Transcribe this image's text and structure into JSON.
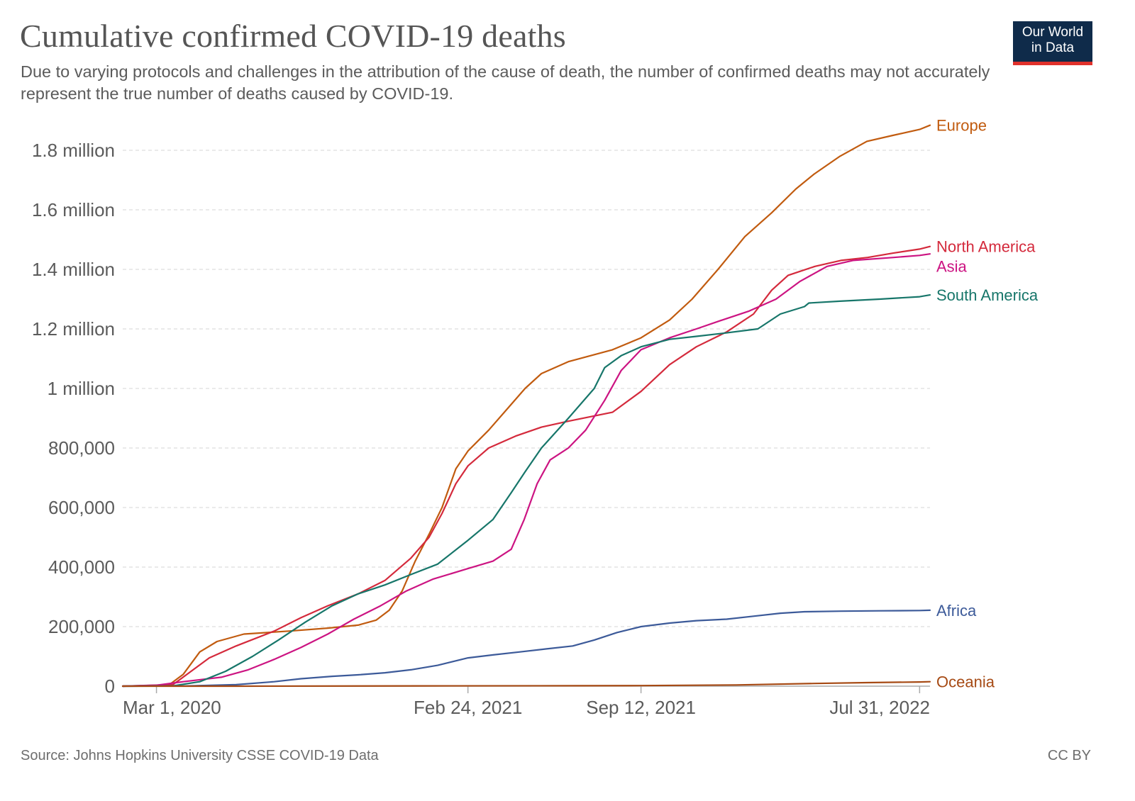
{
  "header": {
    "title": "Cumulative confirmed COVID-19 deaths",
    "subtitle": "Due to varying protocols and challenges in the attribution of the cause of death, the number of confirmed deaths may not accurately represent the true number of deaths caused by COVID-19.",
    "logo_line1": "Our World",
    "logo_line2": "in Data"
  },
  "footer": {
    "source": "Source: Johns Hopkins University CSSE COVID-19 Data",
    "license": "CC BY"
  },
  "colors": {
    "logo_bg": "#0f2b4a",
    "logo_accent": "#e0312b",
    "grid": "#dddddd",
    "axis": "#aaaaaa"
  },
  "chart_data": {
    "type": "line",
    "title": "Cumulative confirmed COVID-19 deaths",
    "xlabel": "",
    "ylabel": "",
    "x_range": [
      "2020-01-22",
      "2022-08-12"
    ],
    "ylim": [
      0,
      1900000
    ],
    "x_ticks": [
      {
        "date": "2020-03-01",
        "label": "Mar 1, 2020"
      },
      {
        "date": "2021-02-24",
        "label": "Feb 24, 2021"
      },
      {
        "date": "2021-09-12",
        "label": "Sep 12, 2021"
      },
      {
        "date": "2022-07-31",
        "label": "Jul 31, 2022"
      }
    ],
    "y_ticks": [
      {
        "value": 0,
        "label": "0"
      },
      {
        "value": 200000,
        "label": "200,000"
      },
      {
        "value": 400000,
        "label": "400,000"
      },
      {
        "value": 600000,
        "label": "600,000"
      },
      {
        "value": 800000,
        "label": "800,000"
      },
      {
        "value": 1000000,
        "label": "1 million"
      },
      {
        "value": 1200000,
        "label": "1.2 million"
      },
      {
        "value": 1400000,
        "label": "1.4 million"
      },
      {
        "value": 1600000,
        "label": "1.6 million"
      },
      {
        "value": 1800000,
        "label": "1.8 million"
      }
    ],
    "grid": "horizontal dashed",
    "legend": "inline labels at right end of lines",
    "series": [
      {
        "name": "Europe",
        "color": "#c15b0f",
        "points": [
          [
            "2020-01-22",
            0
          ],
          [
            "2020-03-15",
            3000
          ],
          [
            "2020-04-01",
            40000
          ],
          [
            "2020-04-20",
            115000
          ],
          [
            "2020-05-10",
            150000
          ],
          [
            "2020-06-10",
            175000
          ],
          [
            "2020-08-01",
            185000
          ],
          [
            "2020-09-15",
            195000
          ],
          [
            "2020-10-20",
            205000
          ],
          [
            "2020-11-10",
            222000
          ],
          [
            "2020-11-25",
            255000
          ],
          [
            "2020-12-10",
            320000
          ],
          [
            "2020-12-25",
            420000
          ],
          [
            "2021-01-10",
            510000
          ],
          [
            "2021-01-25",
            600000
          ],
          [
            "2021-02-10",
            730000
          ],
          [
            "2021-02-24",
            790000
          ],
          [
            "2021-03-20",
            860000
          ],
          [
            "2021-04-10",
            930000
          ],
          [
            "2021-05-01",
            1000000
          ],
          [
            "2021-05-20",
            1050000
          ],
          [
            "2021-06-20",
            1090000
          ],
          [
            "2021-08-10",
            1130000
          ],
          [
            "2021-09-12",
            1170000
          ],
          [
            "2021-10-15",
            1230000
          ],
          [
            "2021-11-10",
            1300000
          ],
          [
            "2021-12-10",
            1400000
          ],
          [
            "2022-01-10",
            1510000
          ],
          [
            "2022-02-10",
            1590000
          ],
          [
            "2022-03-10",
            1670000
          ],
          [
            "2022-03-31",
            1720000
          ],
          [
            "2022-04-30",
            1780000
          ],
          [
            "2022-05-31",
            1830000
          ],
          [
            "2022-06-30",
            1850000
          ],
          [
            "2022-07-31",
            1870000
          ],
          [
            "2022-08-12",
            1884000
          ]
        ]
      },
      {
        "name": "North America",
        "color": "#d42a3c",
        "points": [
          [
            "2020-01-22",
            0
          ],
          [
            "2020-03-20",
            5000
          ],
          [
            "2020-04-10",
            50000
          ],
          [
            "2020-05-01",
            95000
          ],
          [
            "2020-06-01",
            135000
          ],
          [
            "2020-07-15",
            185000
          ],
          [
            "2020-08-15",
            230000
          ],
          [
            "2020-09-15",
            270000
          ],
          [
            "2020-10-20",
            310000
          ],
          [
            "2020-11-20",
            355000
          ],
          [
            "2020-12-20",
            430000
          ],
          [
            "2021-01-10",
            500000
          ],
          [
            "2021-01-25",
            580000
          ],
          [
            "2021-02-10",
            680000
          ],
          [
            "2021-02-24",
            740000
          ],
          [
            "2021-03-20",
            800000
          ],
          [
            "2021-04-20",
            840000
          ],
          [
            "2021-05-20",
            870000
          ],
          [
            "2021-06-20",
            890000
          ],
          [
            "2021-08-10",
            920000
          ],
          [
            "2021-09-12",
            990000
          ],
          [
            "2021-10-15",
            1080000
          ],
          [
            "2021-11-15",
            1140000
          ],
          [
            "2021-12-20",
            1190000
          ],
          [
            "2022-01-20",
            1250000
          ],
          [
            "2022-02-10",
            1330000
          ],
          [
            "2022-03-01",
            1380000
          ],
          [
            "2022-04-01",
            1410000
          ],
          [
            "2022-05-01",
            1430000
          ],
          [
            "2022-06-01",
            1440000
          ],
          [
            "2022-07-01",
            1455000
          ],
          [
            "2022-07-31",
            1468000
          ],
          [
            "2022-08-12",
            1477000
          ]
        ]
      },
      {
        "name": "Asia",
        "color": "#cc1482",
        "points": [
          [
            "2020-01-22",
            0
          ],
          [
            "2020-03-01",
            3000
          ],
          [
            "2020-04-01",
            15000
          ],
          [
            "2020-05-15",
            30000
          ],
          [
            "2020-06-15",
            55000
          ],
          [
            "2020-07-15",
            90000
          ],
          [
            "2020-08-15",
            130000
          ],
          [
            "2020-09-15",
            175000
          ],
          [
            "2020-10-15",
            225000
          ],
          [
            "2020-11-15",
            270000
          ],
          [
            "2020-12-15",
            320000
          ],
          [
            "2021-01-15",
            360000
          ],
          [
            "2021-02-24",
            395000
          ],
          [
            "2021-03-25",
            420000
          ],
          [
            "2021-04-15",
            460000
          ],
          [
            "2021-04-30",
            560000
          ],
          [
            "2021-05-15",
            680000
          ],
          [
            "2021-05-30",
            760000
          ],
          [
            "2021-06-20",
            800000
          ],
          [
            "2021-07-10",
            860000
          ],
          [
            "2021-08-01",
            960000
          ],
          [
            "2021-08-20",
            1060000
          ],
          [
            "2021-09-12",
            1130000
          ],
          [
            "2021-10-15",
            1170000
          ],
          [
            "2021-11-15",
            1200000
          ],
          [
            "2021-12-15",
            1230000
          ],
          [
            "2022-01-15",
            1260000
          ],
          [
            "2022-02-15",
            1300000
          ],
          [
            "2022-03-15",
            1360000
          ],
          [
            "2022-04-15",
            1410000
          ],
          [
            "2022-05-15",
            1430000
          ],
          [
            "2022-07-01",
            1440000
          ],
          [
            "2022-07-31",
            1447000
          ],
          [
            "2022-08-12",
            1452000
          ]
        ]
      },
      {
        "name": "South America",
        "color": "#17766a",
        "points": [
          [
            "2020-01-22",
            0
          ],
          [
            "2020-03-20",
            1000
          ],
          [
            "2020-04-20",
            15000
          ],
          [
            "2020-05-20",
            50000
          ],
          [
            "2020-06-20",
            100000
          ],
          [
            "2020-07-20",
            155000
          ],
          [
            "2020-08-20",
            215000
          ],
          [
            "2020-09-20",
            270000
          ],
          [
            "2020-10-20",
            310000
          ],
          [
            "2020-11-20",
            340000
          ],
          [
            "2020-12-20",
            375000
          ],
          [
            "2021-01-20",
            410000
          ],
          [
            "2021-02-24",
            490000
          ],
          [
            "2021-03-25",
            560000
          ],
          [
            "2021-04-15",
            650000
          ],
          [
            "2021-05-01",
            720000
          ],
          [
            "2021-05-20",
            800000
          ],
          [
            "2021-06-20",
            900000
          ],
          [
            "2021-07-20",
            1000000
          ],
          [
            "2021-08-01",
            1070000
          ],
          [
            "2021-08-20",
            1110000
          ],
          [
            "2021-09-12",
            1140000
          ],
          [
            "2021-10-15",
            1165000
          ],
          [
            "2021-11-15",
            1175000
          ],
          [
            "2021-12-15",
            1185000
          ],
          [
            "2022-01-25",
            1200000
          ],
          [
            "2022-02-20",
            1250000
          ],
          [
            "2022-03-20",
            1275000
          ],
          [
            "2022-03-25",
            1287000
          ],
          [
            "2022-04-30",
            1293000
          ],
          [
            "2022-06-15",
            1300000
          ],
          [
            "2022-07-31",
            1308000
          ],
          [
            "2022-08-12",
            1314000
          ]
        ]
      },
      {
        "name": "Africa",
        "color": "#3c5a99",
        "points": [
          [
            "2020-01-22",
            0
          ],
          [
            "2020-04-01",
            500
          ],
          [
            "2020-06-01",
            5000
          ],
          [
            "2020-07-15",
            15000
          ],
          [
            "2020-08-15",
            25000
          ],
          [
            "2020-09-20",
            33000
          ],
          [
            "2020-10-20",
            38000
          ],
          [
            "2020-11-20",
            45000
          ],
          [
            "2020-12-20",
            55000
          ],
          [
            "2021-01-20",
            70000
          ],
          [
            "2021-02-24",
            95000
          ],
          [
            "2021-03-25",
            105000
          ],
          [
            "2021-04-25",
            115000
          ],
          [
            "2021-05-25",
            125000
          ],
          [
            "2021-06-25",
            135000
          ],
          [
            "2021-07-20",
            155000
          ],
          [
            "2021-08-15",
            180000
          ],
          [
            "2021-09-12",
            200000
          ],
          [
            "2021-10-15",
            212000
          ],
          [
            "2021-11-15",
            220000
          ],
          [
            "2021-12-20",
            225000
          ],
          [
            "2022-01-20",
            235000
          ],
          [
            "2022-02-20",
            245000
          ],
          [
            "2022-03-20",
            250000
          ],
          [
            "2022-05-01",
            252000
          ],
          [
            "2022-06-15",
            253000
          ],
          [
            "2022-07-31",
            254000
          ],
          [
            "2022-08-12",
            255000
          ]
        ]
      },
      {
        "name": "Oceania",
        "color": "#a64a14",
        "points": [
          [
            "2020-01-22",
            0
          ],
          [
            "2020-06-01",
            100
          ],
          [
            "2020-12-31",
            1000
          ],
          [
            "2021-06-30",
            1500
          ],
          [
            "2021-09-12",
            2000
          ],
          [
            "2021-12-31",
            4000
          ],
          [
            "2022-03-31",
            9000
          ],
          [
            "2022-05-31",
            12000
          ],
          [
            "2022-07-31",
            14000
          ],
          [
            "2022-08-12",
            15000
          ]
        ]
      }
    ]
  }
}
